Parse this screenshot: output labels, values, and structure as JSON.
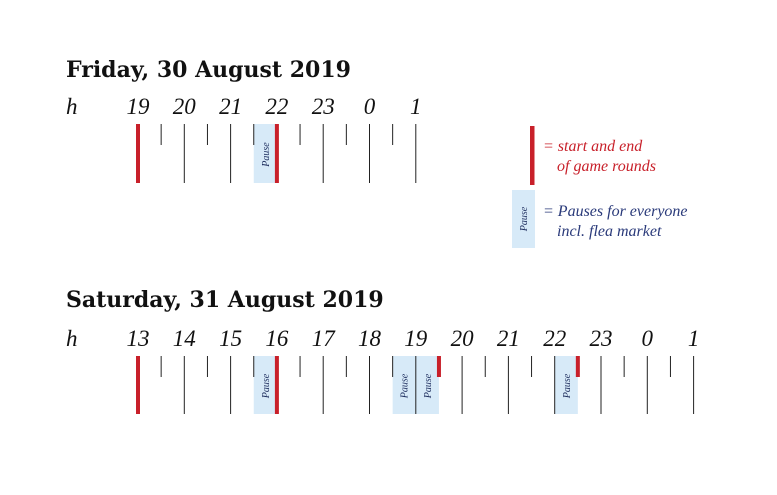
{
  "colors": {
    "round": "#c8202a",
    "pause_fill": "#d7eaf8",
    "tick": "#222222",
    "pause_text": "#1f2f5f",
    "legend_blue": "#2a3a7a"
  },
  "unit_label": "h",
  "pause_label": "Pause",
  "days": [
    {
      "title": "Friday, 30 August 2019",
      "hours": [
        "19",
        "20",
        "21",
        "22",
        "23",
        "0",
        "1"
      ],
      "rounds": [
        0,
        3
      ],
      "round_stubs": [],
      "pauses": [
        [
          2.5,
          3
        ]
      ]
    },
    {
      "title": "Saturday, 31 August 2019",
      "hours": [
        "13",
        "14",
        "15",
        "16",
        "17",
        "18",
        "19",
        "20",
        "21",
        "22",
        "23",
        "0",
        "1"
      ],
      "rounds": [
        0,
        3
      ],
      "round_stubs": [
        6.5,
        9.5
      ],
      "pauses": [
        [
          2.5,
          3
        ],
        [
          5.5,
          6
        ],
        [
          6,
          6.5
        ],
        [
          9,
          9.5
        ]
      ]
    }
  ],
  "legend": {
    "round_line1": "= start and end",
    "round_line2": "of game rounds",
    "pause_line1": "= Pauses for everyone",
    "pause_line2": "incl. flea market"
  }
}
